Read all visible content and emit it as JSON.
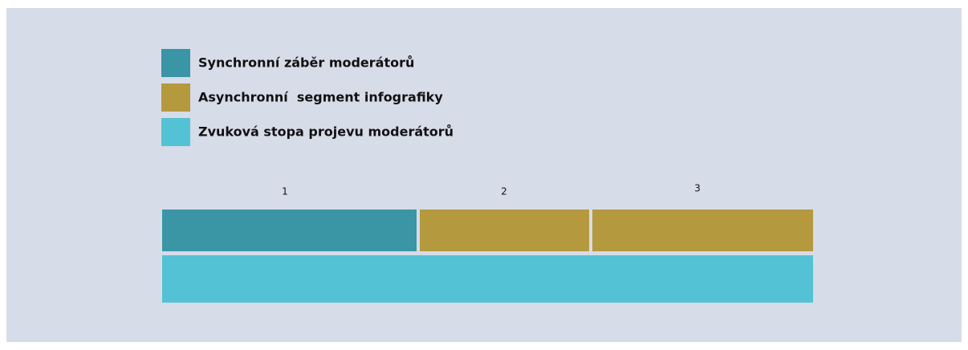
{
  "legend": [
    {
      "label": "Synchronní záběr moderátorů"
    },
    {
      "label": "Asynchronní  segment infografiky"
    },
    {
      "label": "Zvuková stopa projevu moderátorů"
    }
  ],
  "segments": [
    {
      "label": "1"
    },
    {
      "label": "2"
    },
    {
      "label": "3"
    }
  ]
}
